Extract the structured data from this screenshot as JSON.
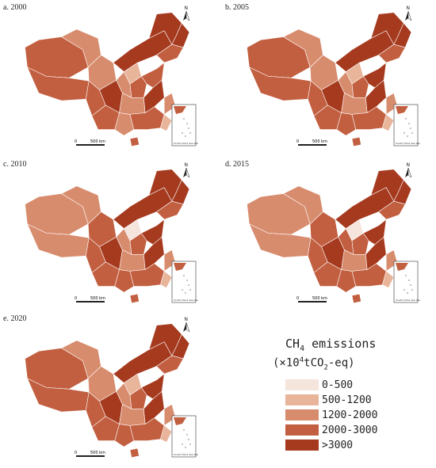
{
  "panels": [
    {
      "label": "a. 2000"
    },
    {
      "label": "b. 2005"
    },
    {
      "label": "c. 2010"
    },
    {
      "label": "d. 2015"
    },
    {
      "label": "e. 2020"
    }
  ],
  "map": {
    "north_label": "N",
    "scale_start": "0",
    "scale_end": "500 km",
    "inset_caption": "South China Sea Islands"
  },
  "legend": {
    "title_main": "CH",
    "title_sub": "4",
    "title_rest": " emissions",
    "unit_prefix": "(×10",
    "unit_sup": "4",
    "unit_mid": "tCO",
    "unit_sub": "2",
    "unit_suffix": "-eq)",
    "items": [
      {
        "label": "0-500",
        "color": "#f6e5dc"
      },
      {
        "label": "500-1200",
        "color": "#e8b49a"
      },
      {
        "label": "1200-2000",
        "color": "#d88c6e"
      },
      {
        "label": "2000-3000",
        "color": "#c25f40"
      },
      {
        "label": ">3000",
        "color": "#a53a1f"
      }
    ]
  }
}
